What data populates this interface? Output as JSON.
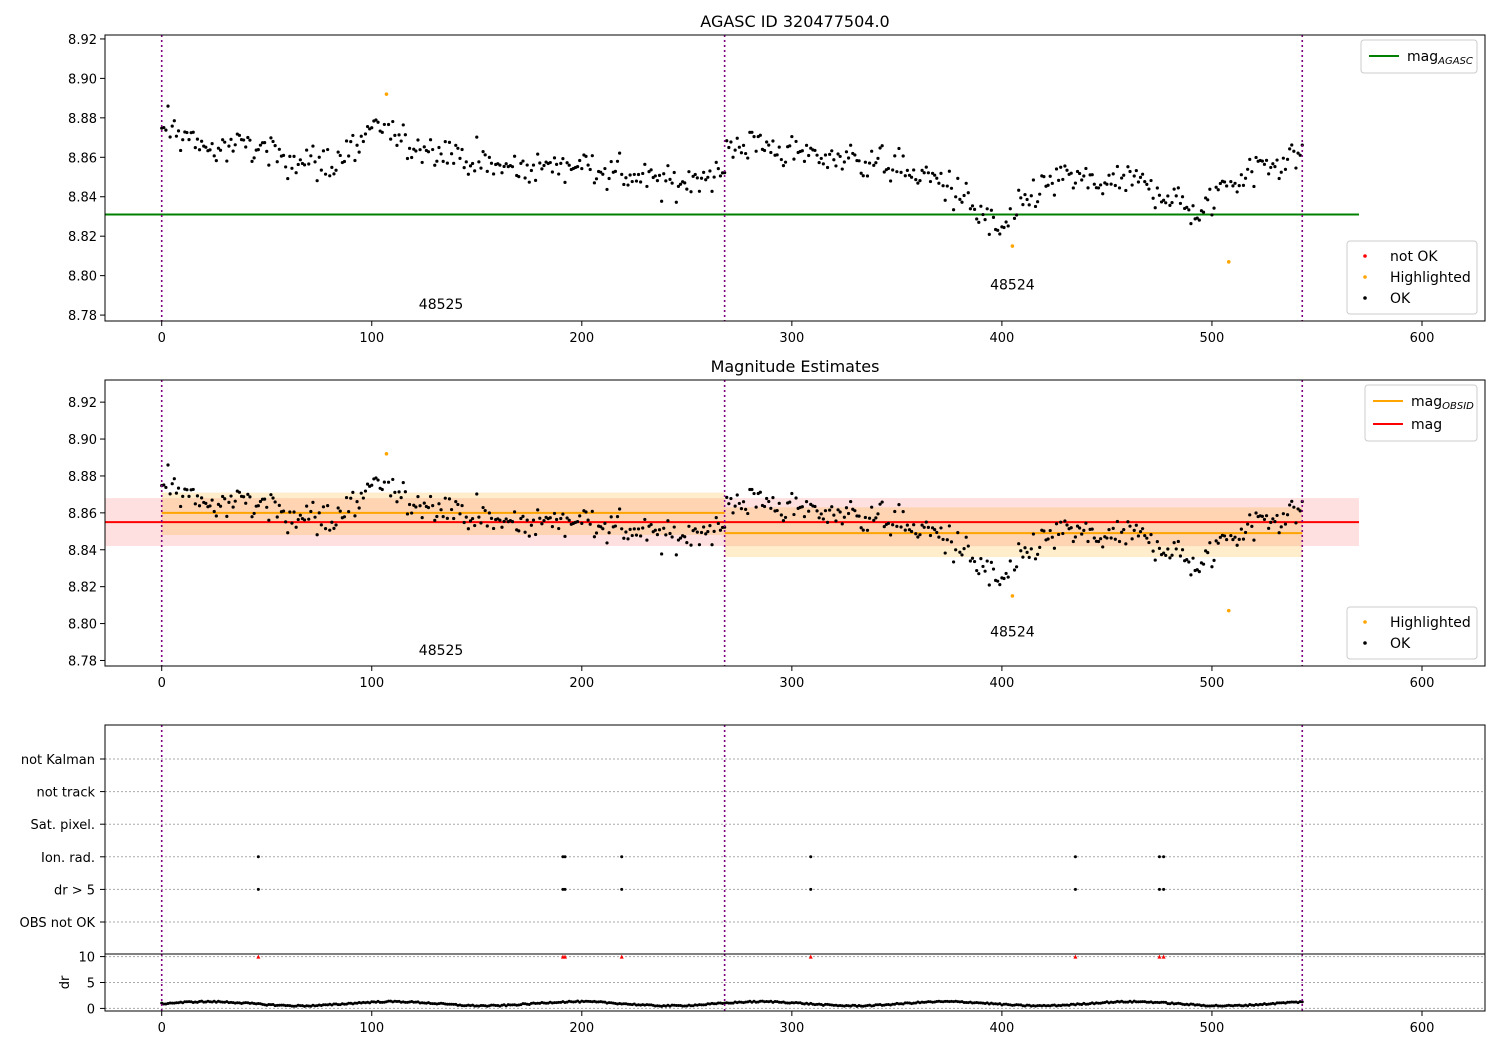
{
  "chart_data": [
    {
      "id": "top",
      "type": "scatter",
      "title": "AGASC ID 320477504.0",
      "xlim": [
        -27,
        630
      ],
      "ylim": [
        8.777,
        8.922
      ],
      "xticks": [
        0,
        100,
        200,
        300,
        400,
        500,
        600
      ],
      "yticks": [
        8.78,
        8.8,
        8.82,
        8.84,
        8.86,
        8.88,
        8.9,
        8.92
      ],
      "obs_boundaries": [
        0,
        268,
        543
      ],
      "obs_labels": [
        {
          "text": "48525",
          "x": 133,
          "y": 8.783
        },
        {
          "text": "48524",
          "x": 405,
          "y": 8.793
        }
      ],
      "hlines": [
        {
          "name": "mag",
          "sub": "AGASC",
          "y": 8.831,
          "x0": -27,
          "x1": 570,
          "color": "#008000"
        }
      ],
      "highlighted_points": [
        [
          107,
          8.892
        ],
        [
          405,
          8.815
        ],
        [
          508,
          8.807
        ]
      ],
      "legend_lines": [
        {
          "label": "mag",
          "sub": "AGASC",
          "color": "#008000"
        }
      ],
      "legend_points": [
        {
          "label": "not OK",
          "color": "#ff0000"
        },
        {
          "label": "Highlighted",
          "color": "#ffa500"
        },
        {
          "label": "OK",
          "color": "#000000"
        }
      ]
    },
    {
      "id": "middle",
      "type": "scatter",
      "title": "Magnitude Estimates",
      "xlim": [
        -27,
        630
      ],
      "ylim": [
        8.777,
        8.932
      ],
      "xticks": [
        0,
        100,
        200,
        300,
        400,
        500,
        600
      ],
      "yticks": [
        8.78,
        8.8,
        8.82,
        8.84,
        8.86,
        8.88,
        8.9,
        8.92
      ],
      "obs_boundaries": [
        0,
        268,
        543
      ],
      "obs_labels": [
        {
          "text": "48525",
          "x": 133,
          "y": 8.783
        },
        {
          "text": "48524",
          "x": 405,
          "y": 8.793
        }
      ],
      "bands": [
        {
          "x0": -27,
          "x1": 570,
          "y0": 8.842,
          "y1": 8.868,
          "color": "#ff0000",
          "opacity": 0.12
        },
        {
          "x0": 0,
          "x1": 268,
          "y0": 8.848,
          "y1": 8.871,
          "color": "#ffa500",
          "opacity": 0.2
        },
        {
          "x0": 268,
          "x1": 543,
          "y0": 8.836,
          "y1": 8.863,
          "color": "#ffa500",
          "opacity": 0.2
        }
      ],
      "hlines": [
        {
          "name": "mag",
          "y": 8.855,
          "x0": -27,
          "x1": 570,
          "color": "#ff0000"
        },
        {
          "name": "mag",
          "sub": "OBSID",
          "y": 8.86,
          "x0": 0,
          "x1": 268,
          "color": "#ffa500"
        },
        {
          "name": "mag",
          "sub": "OBSID",
          "y": 8.849,
          "x0": 268,
          "x1": 543,
          "color": "#ffa500"
        }
      ],
      "highlighted_points": [
        [
          107,
          8.892
        ],
        [
          405,
          8.815
        ],
        [
          508,
          8.807
        ]
      ],
      "legend_lines": [
        {
          "label": "mag",
          "sub": "OBSID",
          "color": "#ffa500"
        },
        {
          "label": "mag",
          "color": "#ff0000"
        }
      ],
      "legend_points": [
        {
          "label": "Highlighted",
          "color": "#ffa500"
        },
        {
          "label": "OK",
          "color": "#000000"
        }
      ]
    },
    {
      "id": "flags",
      "type": "scatter",
      "xlim": [
        -27,
        630
      ],
      "categories": [
        "not Kalman",
        "not track",
        "Sat. pixel.",
        "Ion. rad.",
        "dr > 5",
        "OBS not OK"
      ],
      "obs_boundaries": [
        0,
        268,
        543
      ],
      "flag_points": {
        "Ion. rad.": [
          46,
          191,
          192,
          219,
          309,
          435,
          475,
          477
        ],
        "dr > 5": [
          46,
          191,
          192,
          219,
          309,
          435,
          475,
          477
        ]
      }
    },
    {
      "id": "dr",
      "type": "line",
      "ylabel": "dr",
      "xlim": [
        -27,
        630
      ],
      "ylim": [
        -0.5,
        10.5
      ],
      "xticks": [
        0,
        100,
        200,
        300,
        400,
        500,
        600
      ],
      "yticks": [
        0,
        5,
        10
      ],
      "obs_boundaries": [
        0,
        268,
        543
      ],
      "outlier_markers": [
        46,
        191,
        192,
        219,
        309,
        435,
        475,
        477
      ],
      "outlier_value": 10
    }
  ]
}
